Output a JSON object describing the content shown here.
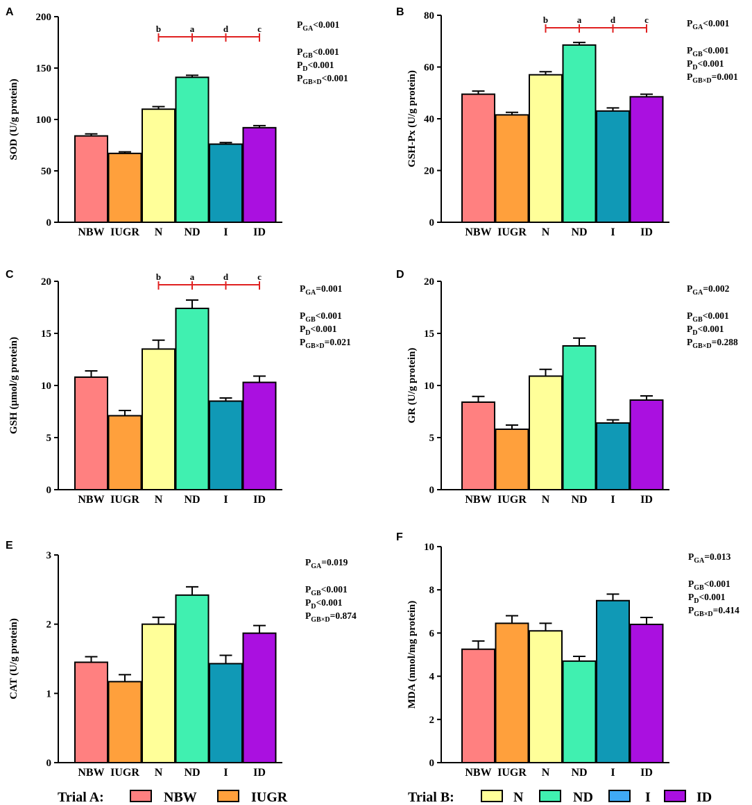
{
  "colors": {
    "NBW": "#FF8080",
    "IUGR": "#FFA03C",
    "N": "#FFFF99",
    "ND": "#40F0B0",
    "I": "#1099B6",
    "ID": "#AA10E0",
    "bracket": "#E02020",
    "legend_I": "#3FA9F5"
  },
  "chart_data": [
    {
      "panel": "A",
      "type": "bar",
      "ylabel": "SOD (U/g protein)",
      "ylim": [
        0,
        200
      ],
      "yticks": [
        0,
        50,
        100,
        150,
        200
      ],
      "categories": [
        "NBW",
        "IUGR",
        "N",
        "ND",
        "I",
        "ID"
      ],
      "values": [
        84,
        67,
        110,
        141,
        76,
        92
      ],
      "errors": [
        2,
        1.5,
        2.5,
        2,
        1.5,
        2
      ],
      "sig_letters": [
        "b",
        "a",
        "d",
        "c"
      ],
      "stats": [
        {
          "main": "P",
          "sub": "GA",
          "rest": "<0.001"
        },
        {
          "main": "P",
          "sub": "GB",
          "rest": "<0.001"
        },
        {
          "main": "P",
          "sub": "D",
          "rest": "<0.001"
        },
        {
          "main": "P",
          "sub": "GB×D",
          "rest": "<0.001"
        }
      ]
    },
    {
      "panel": "B",
      "type": "bar",
      "ylabel": "GSH-Px (U/g protein)",
      "ylim": [
        0,
        80
      ],
      "yticks": [
        0,
        20,
        40,
        60,
        80
      ],
      "categories": [
        "NBW",
        "IUGR",
        "N",
        "ND",
        "I",
        "ID"
      ],
      "values": [
        49.5,
        41.5,
        57,
        68.5,
        43,
        48.5
      ],
      "errors": [
        1.2,
        1.0,
        1.2,
        1.0,
        1.2,
        1.0
      ],
      "sig_letters": [
        "b",
        "a",
        "d",
        "c"
      ],
      "stats": [
        {
          "main": "P",
          "sub": "GA",
          "rest": "<0.001"
        },
        {
          "main": "P",
          "sub": "GB",
          "rest": "<0.001"
        },
        {
          "main": "P",
          "sub": "D",
          "rest": "<0.001"
        },
        {
          "main": "P",
          "sub": "GB×D",
          "rest": "=0.001"
        }
      ]
    },
    {
      "panel": "C",
      "type": "bar",
      "ylabel": "GSH (μmol/g protein)",
      "ylim": [
        0,
        20
      ],
      "yticks": [
        0,
        5,
        10,
        15,
        20
      ],
      "categories": [
        "NBW",
        "IUGR",
        "N",
        "ND",
        "I",
        "ID"
      ],
      "values": [
        10.8,
        7.1,
        13.5,
        17.4,
        8.5,
        10.3
      ],
      "errors": [
        0.6,
        0.5,
        0.85,
        0.8,
        0.3,
        0.6
      ],
      "sig_letters": [
        "b",
        "a",
        "d",
        "c"
      ],
      "stats": [
        {
          "main": "P",
          "sub": "GA",
          "rest": "=0.001"
        },
        {
          "main": "P",
          "sub": "GB",
          "rest": "<0.001"
        },
        {
          "main": "P",
          "sub": "D",
          "rest": "<0.001"
        },
        {
          "main": "P",
          "sub": "GB×D",
          "rest": "=0.021"
        }
      ]
    },
    {
      "panel": "D",
      "type": "bar",
      "ylabel": "GR (U/g protein)",
      "ylim": [
        0,
        20
      ],
      "yticks": [
        0,
        5,
        10,
        15,
        20
      ],
      "categories": [
        "NBW",
        "IUGR",
        "N",
        "ND",
        "I",
        "ID"
      ],
      "values": [
        8.4,
        5.8,
        10.9,
        13.8,
        6.4,
        8.6
      ],
      "errors": [
        0.55,
        0.4,
        0.65,
        0.75,
        0.3,
        0.4
      ],
      "sig_letters": [],
      "stats": [
        {
          "main": "P",
          "sub": "GA",
          "rest": "=0.002"
        },
        {
          "main": "P",
          "sub": "GB",
          "rest": "<0.001"
        },
        {
          "main": "P",
          "sub": "D",
          "rest": "<0.001"
        },
        {
          "main": "P",
          "sub": "GB×D",
          "rest": "=0.288"
        }
      ]
    },
    {
      "panel": "E",
      "type": "bar",
      "ylabel": "CAT (U/g protein)",
      "ylim": [
        0,
        3
      ],
      "yticks": [
        0,
        1,
        2,
        3
      ],
      "categories": [
        "NBW",
        "IUGR",
        "N",
        "ND",
        "I",
        "ID"
      ],
      "values": [
        1.45,
        1.17,
        2.0,
        2.42,
        1.43,
        1.87
      ],
      "errors": [
        0.08,
        0.1,
        0.1,
        0.12,
        0.12,
        0.11
      ],
      "sig_letters": [],
      "stats": [
        {
          "main": "P",
          "sub": "GA",
          "rest": "=0.019"
        },
        {
          "main": "P",
          "sub": "GB",
          "rest": "<0.001"
        },
        {
          "main": "P",
          "sub": "D",
          "rest": "<0.001"
        },
        {
          "main": "P",
          "sub": "GB×D",
          "rest": "=0.874"
        }
      ]
    },
    {
      "panel": "F",
      "type": "bar",
      "ylabel": "MDA (nmol/mg protein)",
      "ylim": [
        0,
        10
      ],
      "yticks": [
        0,
        2,
        4,
        6,
        8,
        10
      ],
      "categories": [
        "NBW",
        "IUGR",
        "N",
        "ND",
        "I",
        "ID"
      ],
      "values": [
        5.25,
        6.45,
        6.1,
        4.7,
        7.5,
        6.4
      ],
      "errors": [
        0.38,
        0.35,
        0.35,
        0.22,
        0.3,
        0.32
      ],
      "sig_letters": [],
      "stats": [
        {
          "main": "P",
          "sub": "GA",
          "rest": "=0.013"
        },
        {
          "main": "P",
          "sub": "GB",
          "rest": "<0.001"
        },
        {
          "main": "P",
          "sub": "D",
          "rest": "<0.001"
        },
        {
          "main": "P",
          "sub": "GB×D",
          "rest": "=0.414"
        }
      ]
    }
  ],
  "legend": {
    "trial_a": {
      "label": "Trial A:",
      "items": [
        "NBW",
        "IUGR"
      ]
    },
    "trial_b": {
      "label": "Trial B:",
      "items": [
        "N",
        "ND",
        "I",
        "ID"
      ]
    }
  }
}
